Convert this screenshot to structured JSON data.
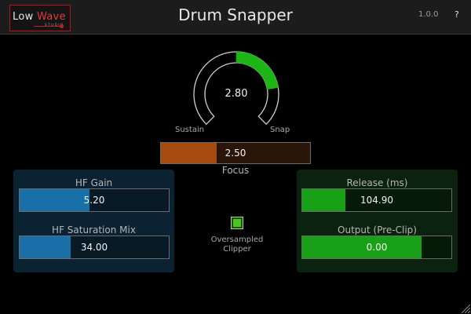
{
  "header": {
    "logo": {
      "word1": "Low",
      "word2": "Wave",
      "sub": "STUDIO"
    },
    "title": "Drum Snapper",
    "version": "1.0.0",
    "help_label": "?"
  },
  "knob": {
    "value": 2.8,
    "value_label": "2.80",
    "min_label": "Sustain",
    "max_label": "Snap",
    "fill_fraction": 0.3,
    "track_color": "#cfcfcf",
    "fill_color": "#1db515"
  },
  "focus": {
    "value_label": "2.50",
    "fill_fraction": 0.375,
    "label": "Focus",
    "color": "#a54b0f"
  },
  "left_panel": {
    "hf_gain": {
      "label": "HF Gain",
      "value_label": "5.20",
      "fill_fraction": 0.47
    },
    "hf_saturation_mix": {
      "label": "HF Saturation Mix",
      "value_label": "34.00",
      "fill_fraction": 0.34
    },
    "color": "#1970a8"
  },
  "right_panel": {
    "release": {
      "label": "Release (ms)",
      "value_label": "104.90",
      "fill_fraction": 0.29
    },
    "output": {
      "label": "Output (Pre-Clip)",
      "value_label": "0.00",
      "fill_fraction": 0.8
    },
    "color": "#18a117"
  },
  "oversampled_clipper": {
    "label_line1": "Oversampled",
    "label_line2": "Clipper",
    "checked": true
  }
}
